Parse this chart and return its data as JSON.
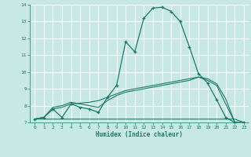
{
  "xlabel": "Humidex (Indice chaleur)",
  "bg_color": "#c8e8e4",
  "grid_color": "#ffffff",
  "line_color": "#1a7a6a",
  "xlim": [
    -0.5,
    23.5
  ],
  "ylim": [
    7,
    14
  ],
  "xticks": [
    0,
    1,
    2,
    3,
    4,
    5,
    6,
    7,
    8,
    9,
    10,
    11,
    12,
    13,
    14,
    15,
    16,
    17,
    18,
    19,
    20,
    21,
    22,
    23
  ],
  "yticks": [
    7,
    8,
    9,
    10,
    11,
    12,
    13,
    14
  ],
  "series": [
    {
      "x": [
        0,
        1,
        2,
        3,
        4,
        5,
        6,
        7,
        8,
        9,
        10,
        11,
        12,
        13,
        14,
        15,
        16,
        17,
        18,
        19,
        20,
        21,
        22,
        23
      ],
      "y": [
        7.2,
        7.3,
        7.8,
        7.3,
        8.1,
        7.9,
        7.8,
        7.6,
        8.5,
        9.2,
        11.8,
        11.2,
        13.2,
        13.8,
        13.85,
        13.6,
        13.0,
        11.5,
        9.9,
        9.35,
        8.35,
        7.3,
        7.0,
        7.0
      ],
      "marker": "+"
    },
    {
      "x": [
        0,
        1,
        2,
        3,
        4,
        5,
        6,
        7,
        8,
        9,
        10,
        11,
        12,
        13,
        14,
        15,
        16,
        17,
        18,
        19,
        20,
        21,
        22,
        23
      ],
      "y": [
        7.2,
        7.2,
        7.2,
        7.2,
        7.2,
        7.2,
        7.2,
        7.2,
        7.2,
        7.2,
        7.2,
        7.2,
        7.2,
        7.2,
        7.2,
        7.2,
        7.2,
        7.2,
        7.2,
        7.2,
        7.2,
        7.2,
        7.2,
        7.0
      ],
      "marker": null
    },
    {
      "x": [
        0,
        1,
        2,
        3,
        4,
        5,
        6,
        7,
        8,
        9,
        10,
        11,
        12,
        13,
        14,
        15,
        16,
        17,
        18,
        19,
        20,
        21,
        22,
        23
      ],
      "y": [
        7.2,
        7.3,
        7.8,
        7.9,
        8.1,
        8.15,
        8.2,
        8.3,
        8.5,
        8.7,
        8.9,
        9.0,
        9.1,
        9.2,
        9.3,
        9.4,
        9.5,
        9.6,
        9.7,
        9.6,
        9.3,
        8.4,
        7.0,
        7.0
      ],
      "marker": null
    },
    {
      "x": [
        0,
        1,
        2,
        3,
        4,
        5,
        6,
        7,
        8,
        9,
        10,
        11,
        12,
        13,
        14,
        15,
        16,
        17,
        18,
        19,
        20,
        21,
        22,
        23
      ],
      "y": [
        7.2,
        7.3,
        7.9,
        8.0,
        8.2,
        8.1,
        8.0,
        7.9,
        8.3,
        8.6,
        8.8,
        8.9,
        9.0,
        9.1,
        9.2,
        9.3,
        9.4,
        9.5,
        9.7,
        9.5,
        9.2,
        8.1,
        7.0,
        7.0
      ],
      "marker": null
    }
  ]
}
